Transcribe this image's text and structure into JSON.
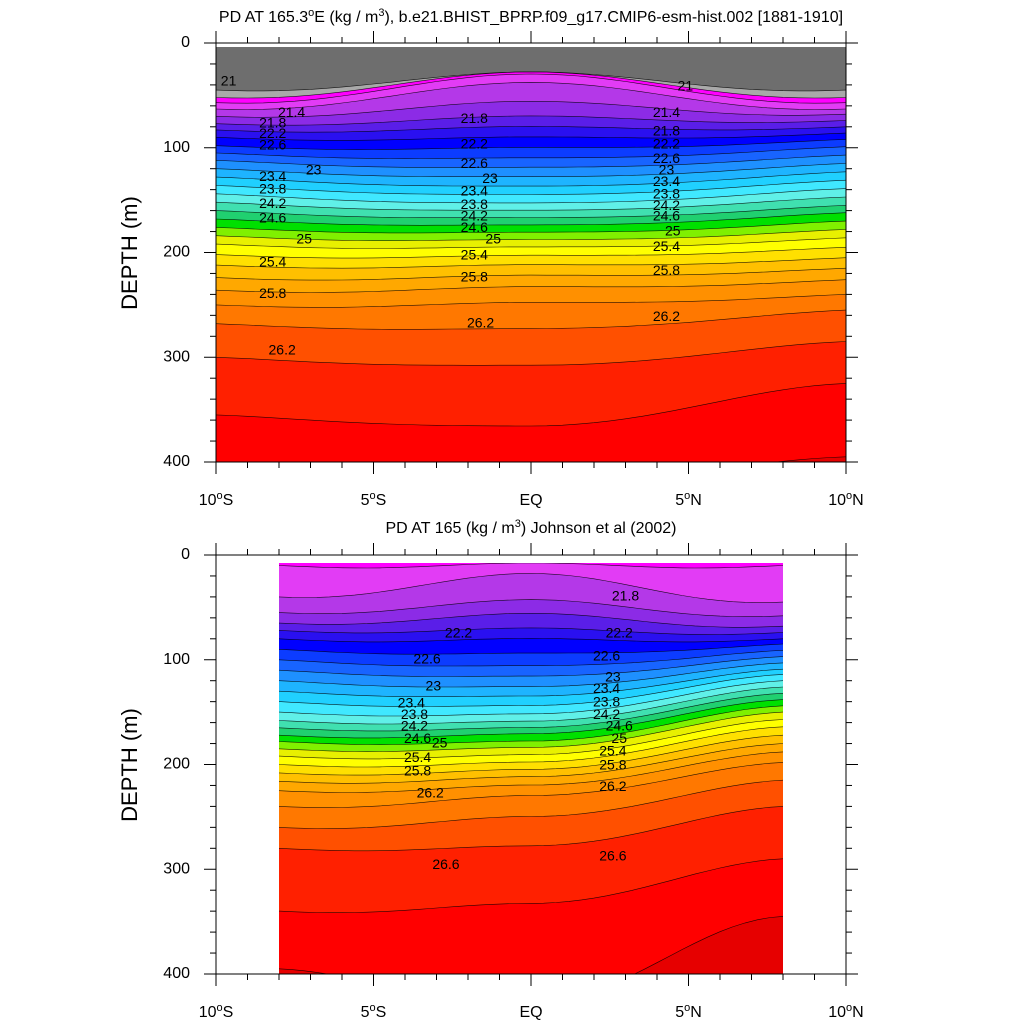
{
  "chart_data": [
    {
      "type": "contour",
      "title_parts": [
        "PD AT 165.3",
        "o",
        "E (kg / m",
        "3",
        "), b.e21.BHIST_BPRP.f09_g17.CMIP6-esm-hist.002 [1881-1910]"
      ],
      "ylabel": "DEPTH (m)",
      "ylim": [
        0,
        400
      ],
      "xlim": [
        -10,
        10
      ],
      "y_ticks": [
        "0",
        "100",
        "200",
        "300",
        "400"
      ],
      "data_extent": [
        -10,
        10
      ],
      "surface_levels": [
        {
          "v": 21.0,
          "left": 45,
          "mid": 30,
          "right": 45
        },
        {
          "v": 21.2,
          "left": 52,
          "mid": 30,
          "right": 52
        },
        {
          "v": 21.4,
          "left": 57,
          "mid": 32,
          "right": 57
        },
        {
          "v": 21.6,
          "left": 63,
          "mid": 40,
          "right": 63
        },
        {
          "v": 21.8,
          "left": 70,
          "mid": 58,
          "right": 68
        },
        {
          "v": 22.0,
          "left": 77,
          "mid": 72,
          "right": 74
        },
        {
          "v": 22.2,
          "left": 83,
          "mid": 82,
          "right": 80
        },
        {
          "v": 22.4,
          "left": 90,
          "mid": 92,
          "right": 86
        },
        {
          "v": 22.6,
          "left": 98,
          "mid": 102,
          "right": 92
        },
        {
          "v": 22.8,
          "left": 105,
          "mid": 112,
          "right": 99
        },
        {
          "v": 23.0,
          "left": 112,
          "mid": 121,
          "right": 107
        },
        {
          "v": 23.2,
          "left": 120,
          "mid": 130,
          "right": 115
        },
        {
          "v": 23.4,
          "left": 128,
          "mid": 139,
          "right": 123
        },
        {
          "v": 23.6,
          "left": 136,
          "mid": 147,
          "right": 131
        },
        {
          "v": 23.8,
          "left": 144,
          "mid": 155,
          "right": 139
        },
        {
          "v": 24.0,
          "left": 152,
          "mid": 162,
          "right": 147
        },
        {
          "v": 24.2,
          "left": 160,
          "mid": 169,
          "right": 155
        },
        {
          "v": 24.4,
          "left": 168,
          "mid": 176,
          "right": 162
        },
        {
          "v": 24.6,
          "left": 176,
          "mid": 183,
          "right": 170
        },
        {
          "v": 24.8,
          "left": 184,
          "mid": 190,
          "right": 178
        },
        {
          "v": 25.0,
          "left": 192,
          "mid": 197,
          "right": 186
        },
        {
          "v": 25.2,
          "left": 202,
          "mid": 205,
          "right": 195
        },
        {
          "v": 25.4,
          "left": 212,
          "mid": 214,
          "right": 205
        },
        {
          "v": 25.6,
          "left": 224,
          "mid": 224,
          "right": 215
        },
        {
          "v": 25.8,
          "left": 236,
          "mid": 235,
          "right": 226
        },
        {
          "v": 26.0,
          "left": 250,
          "mid": 250,
          "right": 240
        },
        {
          "v": 26.2,
          "left": 268,
          "mid": 275,
          "right": 255
        },
        {
          "v": 26.4,
          "left": 300,
          "mid": 310,
          "right": 285
        },
        {
          "v": 26.6,
          "left": 355,
          "mid": 368,
          "right": 325
        },
        {
          "v": 26.8,
          "left": 400,
          "mid": 420,
          "right": 395
        }
      ],
      "contour_labels": [
        {
          "text": "21",
          "x": -9.6,
          "y": 37
        },
        {
          "text": "21",
          "x": 4.9,
          "y": 42
        },
        {
          "text": "21.4",
          "x": -7.6,
          "y": 67
        },
        {
          "text": "21.4",
          "x": 4.3,
          "y": 67
        },
        {
          "text": "21.8",
          "x": -8.2,
          "y": 77
        },
        {
          "text": "21.8",
          "x": -1.8,
          "y": 73
        },
        {
          "text": "21.8",
          "x": 4.3,
          "y": 85
        },
        {
          "text": "22.2",
          "x": -8.2,
          "y": 87
        },
        {
          "text": "22.2",
          "x": -1.8,
          "y": 97
        },
        {
          "text": "22.2",
          "x": 4.3,
          "y": 97
        },
        {
          "text": "22.6",
          "x": -8.2,
          "y": 98
        },
        {
          "text": "22.6",
          "x": -1.8,
          "y": 116
        },
        {
          "text": "22.6",
          "x": 4.3,
          "y": 111
        },
        {
          "text": "23",
          "x": -6.9,
          "y": 122
        },
        {
          "text": "23",
          "x": -1.3,
          "y": 130
        },
        {
          "text": "23",
          "x": 4.3,
          "y": 122
        },
        {
          "text": "23.4",
          "x": -8.2,
          "y": 128
        },
        {
          "text": "23.4",
          "x": -1.8,
          "y": 142
        },
        {
          "text": "23.4",
          "x": 4.3,
          "y": 133
        },
        {
          "text": "23.8",
          "x": -8.2,
          "y": 140
        },
        {
          "text": "23.8",
          "x": -1.8,
          "y": 155
        },
        {
          "text": "23.8",
          "x": 4.3,
          "y": 145
        },
        {
          "text": "24.2",
          "x": -8.2,
          "y": 154
        },
        {
          "text": "24.2",
          "x": -1.8,
          "y": 166
        },
        {
          "text": "24.2",
          "x": 4.3,
          "y": 156
        },
        {
          "text": "24.6",
          "x": -8.2,
          "y": 168
        },
        {
          "text": "24.6",
          "x": -1.8,
          "y": 177
        },
        {
          "text": "24.6",
          "x": 4.3,
          "y": 166
        },
        {
          "text": "25",
          "x": -7.2,
          "y": 188
        },
        {
          "text": "25",
          "x": -1.2,
          "y": 188
        },
        {
          "text": "25",
          "x": 4.5,
          "y": 180
        },
        {
          "text": "25.4",
          "x": -8.2,
          "y": 210
        },
        {
          "text": "25.4",
          "x": -1.8,
          "y": 203
        },
        {
          "text": "25.4",
          "x": 4.3,
          "y": 195
        },
        {
          "text": "25.8",
          "x": -8.2,
          "y": 240
        },
        {
          "text": "25.8",
          "x": -1.8,
          "y": 224
        },
        {
          "text": "25.8",
          "x": 4.3,
          "y": 218
        },
        {
          "text": "26.2",
          "x": -1.6,
          "y": 268
        },
        {
          "text": "26.2",
          "x": 4.3,
          "y": 262
        },
        {
          "text": "26.2",
          "x": -7.9,
          "y": 294
        }
      ]
    },
    {
      "type": "contour",
      "title_parts": [
        "PD AT 165 (kg / m",
        "3",
        ") Johnson et al (2002)"
      ],
      "ylabel": "DEPTH (m)",
      "ylim": [
        0,
        400
      ],
      "xlim": [
        -10,
        10
      ],
      "x_ticks": [
        {
          "v": -10,
          "base": "10",
          "sup": "o",
          "suffix": "S"
        },
        {
          "v": -5,
          "base": "5",
          "sup": "o",
          "suffix": "S"
        },
        {
          "v": 0,
          "base": "EQ",
          "sup": "",
          "suffix": ""
        },
        {
          "v": 5,
          "base": "5",
          "sup": "o",
          "suffix": "N"
        },
        {
          "v": 10,
          "base": "10",
          "sup": "o",
          "suffix": "N"
        }
      ],
      "y_ticks": [
        "0",
        "100",
        "200",
        "300",
        "400"
      ],
      "data_extent": [
        -8,
        8
      ],
      "surface_levels": [
        {
          "v": 21.4,
          "left": 10,
          "mid": 10,
          "right": 10
        },
        {
          "v": 21.6,
          "left": 40,
          "mid": 20,
          "right": 45
        },
        {
          "v": 21.8,
          "left": 55,
          "mid": 45,
          "right": 58
        },
        {
          "v": 22.0,
          "left": 65,
          "mid": 58,
          "right": 68
        },
        {
          "v": 22.2,
          "left": 72,
          "mid": 72,
          "right": 74
        },
        {
          "v": 22.4,
          "left": 80,
          "mid": 82,
          "right": 80
        },
        {
          "v": 22.6,
          "left": 90,
          "mid": 96,
          "right": 85
        },
        {
          "v": 22.8,
          "left": 100,
          "mid": 108,
          "right": 91
        },
        {
          "v": 23.0,
          "left": 110,
          "mid": 118,
          "right": 97
        },
        {
          "v": 23.2,
          "left": 120,
          "mid": 128,
          "right": 103
        },
        {
          "v": 23.4,
          "left": 130,
          "mid": 137,
          "right": 109
        },
        {
          "v": 23.6,
          "left": 140,
          "mid": 146,
          "right": 114
        },
        {
          "v": 23.8,
          "left": 150,
          "mid": 154,
          "right": 120
        },
        {
          "v": 24.0,
          "left": 158,
          "mid": 161,
          "right": 126
        },
        {
          "v": 24.2,
          "left": 165,
          "mid": 167,
          "right": 132
        },
        {
          "v": 24.4,
          "left": 172,
          "mid": 173,
          "right": 138
        },
        {
          "v": 24.6,
          "left": 178,
          "mid": 180,
          "right": 144
        },
        {
          "v": 24.8,
          "left": 185,
          "mid": 186,
          "right": 150
        },
        {
          "v": 25.0,
          "left": 192,
          "mid": 193,
          "right": 157
        },
        {
          "v": 25.2,
          "left": 200,
          "mid": 200,
          "right": 164
        },
        {
          "v": 25.4,
          "left": 208,
          "mid": 207,
          "right": 172
        },
        {
          "v": 25.6,
          "left": 216,
          "mid": 214,
          "right": 180
        },
        {
          "v": 25.8,
          "left": 225,
          "mid": 222,
          "right": 188
        },
        {
          "v": 26.0,
          "left": 240,
          "mid": 232,
          "right": 198
        },
        {
          "v": 26.2,
          "left": 260,
          "mid": 252,
          "right": 215
        },
        {
          "v": 26.4,
          "left": 280,
          "mid": 280,
          "right": 240
        },
        {
          "v": 26.6,
          "left": 340,
          "mid": 335,
          "right": 290
        },
        {
          "v": 26.8,
          "left": 395,
          "mid": 430,
          "right": 345
        }
      ],
      "contour_labels": [
        {
          "text": "21.8",
          "x": 3.0,
          "y": 40
        },
        {
          "text": "22.2",
          "x": -2.3,
          "y": 75
        },
        {
          "text": "22.2",
          "x": 2.8,
          "y": 75
        },
        {
          "text": "22.6",
          "x": -3.3,
          "y": 100
        },
        {
          "text": "22.6",
          "x": 2.4,
          "y": 97
        },
        {
          "text": "23",
          "x": -3.1,
          "y": 126
        },
        {
          "text": "23",
          "x": 2.6,
          "y": 117
        },
        {
          "text": "23.4",
          "x": -3.8,
          "y": 142
        },
        {
          "text": "23.4",
          "x": 2.4,
          "y": 128
        },
        {
          "text": "23.8",
          "x": -3.7,
          "y": 153
        },
        {
          "text": "23.8",
          "x": 2.4,
          "y": 141
        },
        {
          "text": "24.2",
          "x": -3.7,
          "y": 164
        },
        {
          "text": "24.2",
          "x": 2.4,
          "y": 153
        },
        {
          "text": "24.6",
          "x": -3.6,
          "y": 176
        },
        {
          "text": "24.6",
          "x": 2.8,
          "y": 164
        },
        {
          "text": "25",
          "x": -2.9,
          "y": 180
        },
        {
          "text": "25",
          "x": 2.8,
          "y": 176
        },
        {
          "text": "25.4",
          "x": -3.6,
          "y": 194
        },
        {
          "text": "25.4",
          "x": 2.6,
          "y": 188
        },
        {
          "text": "25.8",
          "x": -3.6,
          "y": 207
        },
        {
          "text": "25.8",
          "x": 2.6,
          "y": 201
        },
        {
          "text": "26.2",
          "x": -3.2,
          "y": 228
        },
        {
          "text": "26.2",
          "x": 2.6,
          "y": 222
        },
        {
          "text": "26.6",
          "x": -2.7,
          "y": 296
        },
        {
          "text": "26.6",
          "x": 2.6,
          "y": 288
        }
      ]
    }
  ],
  "colormap": [
    "#ffffff",
    "#6e6e6e",
    "#a9a9a9",
    "#ff00ff",
    "#e23cf5",
    "#b438e8",
    "#8c2be6",
    "#5a1ee8",
    "#2a10f0",
    "#0000ff",
    "#0c3cff",
    "#1864ff",
    "#1e90ff",
    "#1eb4ff",
    "#20d0ff",
    "#40e8ff",
    "#60f0e8",
    "#40e0b0",
    "#20d070",
    "#00e000",
    "#80f000",
    "#e8f000",
    "#ffff00",
    "#ffe000",
    "#ffc000",
    "#ffa800",
    "#ff9000",
    "#ff7800",
    "#ff5000",
    "#ff2000",
    "#ff0000",
    "#e60000",
    "#cc0000",
    "#b40000"
  ]
}
